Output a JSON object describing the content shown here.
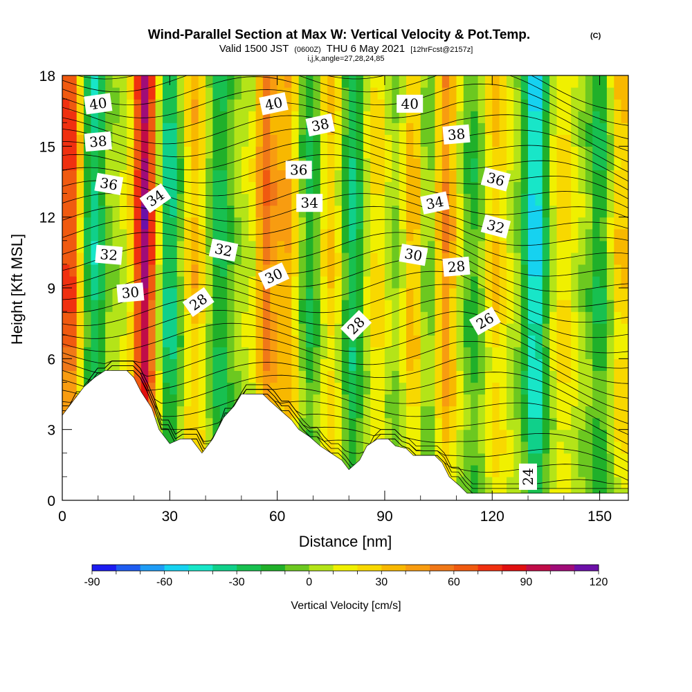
{
  "header": {
    "title": "Wind-Parallel Section at Max W: Vertical Velocity & Pot.Temp.",
    "title_mark": "(C)",
    "valid_prefix": "Valid 1500 JST",
    "valid_zulu": "(0600Z)",
    "valid_date": "THU 6 May 2021",
    "valid_fcst": "[12hrFcst@2157z]",
    "indices": "i,j,k,angle=27,28,24,85"
  },
  "chart_data": {
    "type": "heatmap",
    "xlabel": "Distance [nm]",
    "ylabel": "Height [Kft MSL]",
    "xlim": [
      0,
      158
    ],
    "ylim": [
      0,
      18
    ],
    "x_ticks": [
      "0",
      "30",
      "60",
      "90",
      "120",
      "150"
    ],
    "y_ticks": [
      "0",
      "3",
      "6",
      "9",
      "12",
      "15",
      "18"
    ],
    "colorbar": {
      "label": "Vertical Velocity [cm/s]",
      "range": [
        -90,
        120
      ],
      "step": 10,
      "tick_labels": [
        "-90",
        "-60",
        "-30",
        "0",
        "30",
        "60",
        "90",
        "120"
      ],
      "colors": [
        "#1c1cf0",
        "#1f5cf0",
        "#1f9cf5",
        "#16d2f0",
        "#18e6c8",
        "#10d08a",
        "#18c050",
        "#20b02a",
        "#6cc820",
        "#b4e418",
        "#f0f000",
        "#f8d800",
        "#f8b800",
        "#f89c10",
        "#f07818",
        "#f05a10",
        "#f03010",
        "#e01010",
        "#c00c48",
        "#a00c78",
        "#6c10a8"
      ]
    },
    "theta_contour_labels": [
      "40",
      "40",
      "40",
      "38",
      "38",
      "38",
      "36",
      "36",
      "36",
      "34",
      "34",
      "34",
      "32",
      "32",
      "32",
      "30",
      "30",
      "30",
      "28",
      "28",
      "28",
      "26",
      "24"
    ],
    "vertical_velocity_bands": [
      {
        "x": 2,
        "w": 70,
        "label": "min"
      },
      {
        "x": 9,
        "w": -40,
        "label": "min"
      },
      {
        "x": 23,
        "w": 100,
        "label": "max"
      },
      {
        "x": 30,
        "w": -40,
        "label": "min"
      },
      {
        "x": 37,
        "w": 30,
        "label": "max"
      },
      {
        "x": 44,
        "w": -30,
        "label": "min"
      },
      {
        "x": 57,
        "w": 50,
        "label": "max"
      },
      {
        "x": 63,
        "w": 35,
        "label": "max"
      },
      {
        "x": 69,
        "w": -25,
        "label": "min"
      },
      {
        "x": 75,
        "w": 25,
        "label": "max"
      },
      {
        "x": 81,
        "w": -35,
        "label": "min"
      },
      {
        "x": 88,
        "w": 20,
        "label": "max"
      },
      {
        "x": 93,
        "w": -10,
        "label": "min"
      },
      {
        "x": 98,
        "w": 35,
        "label": "max"
      },
      {
        "x": 102,
        "w": -20,
        "label": "min"
      },
      {
        "x": 107,
        "w": 45,
        "label": "max"
      },
      {
        "x": 115,
        "w": -20,
        "label": "min"
      },
      {
        "x": 121,
        "w": 25,
        "label": "max"
      },
      {
        "x": 132,
        "w": -60,
        "label": "min"
      },
      {
        "x": 140,
        "w": 20,
        "label": "max"
      },
      {
        "x": 150,
        "w": -25,
        "label": "min"
      },
      {
        "x": 156,
        "w": 25,
        "label": "max"
      }
    ],
    "terrain": [
      [
        0,
        3.6
      ],
      [
        3,
        4.2
      ],
      [
        6,
        4.8
      ],
      [
        9,
        5.2
      ],
      [
        12,
        5.5
      ],
      [
        15,
        5.5
      ],
      [
        18,
        5.5
      ],
      [
        20,
        5.2
      ],
      [
        22,
        4.6
      ],
      [
        25,
        3.9
      ],
      [
        27,
        3.0
      ],
      [
        30,
        2.4
      ],
      [
        33,
        2.6
      ],
      [
        36,
        2.6
      ],
      [
        39,
        2.0
      ],
      [
        42,
        2.6
      ],
      [
        45,
        3.5
      ],
      [
        48,
        4.0
      ],
      [
        50,
        4.5
      ],
      [
        53,
        4.5
      ],
      [
        56,
        4.5
      ],
      [
        58,
        4.2
      ],
      [
        61,
        3.8
      ],
      [
        64,
        3.4
      ],
      [
        66,
        3.0
      ],
      [
        69,
        2.7
      ],
      [
        72,
        2.3
      ],
      [
        75,
        2.0
      ],
      [
        78,
        1.7
      ],
      [
        80,
        1.3
      ],
      [
        83,
        1.7
      ],
      [
        85,
        2.3
      ],
      [
        88,
        2.6
      ],
      [
        91,
        2.6
      ],
      [
        93,
        2.3
      ],
      [
        96,
        2.2
      ],
      [
        98,
        1.9
      ],
      [
        101,
        1.9
      ],
      [
        104,
        1.9
      ],
      [
        106,
        1.6
      ],
      [
        108,
        1.0
      ],
      [
        111,
        0.6
      ],
      [
        113,
        0.3
      ],
      [
        115,
        0.3
      ],
      [
        118,
        0.3
      ],
      [
        121,
        0.3
      ],
      [
        124,
        0.3
      ],
      [
        127,
        0.3
      ],
      [
        130,
        0.3
      ],
      [
        158,
        0.3
      ]
    ]
  }
}
